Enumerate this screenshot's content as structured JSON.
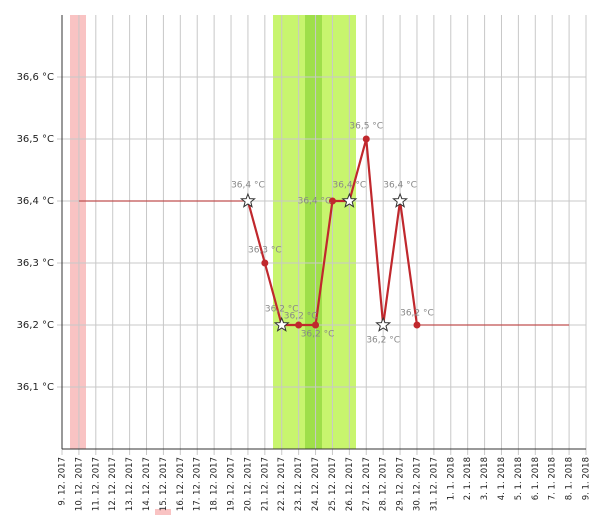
{
  "chart_data": {
    "type": "line",
    "categories": [
      "9. 12. 2017",
      "10. 12. 2017",
      "11. 12. 2017",
      "12. 12. 2017",
      "13. 12. 2017",
      "14. 12. 2017",
      "15. 12. 2017",
      "16. 12. 2017",
      "17. 12. 2017",
      "18. 12. 2017",
      "19. 12. 2017",
      "20. 12. 2017",
      "21. 12. 2017",
      "22. 12. 2017",
      "23. 12. 2017",
      "24. 12. 2017",
      "25. 12. 2017",
      "26. 12. 2017",
      "27. 12. 2017",
      "28. 12. 2017",
      "29. 12. 2017",
      "30. 12. 2017",
      "31. 12. 2017",
      "1. 1. 2018",
      "2. 1. 2018",
      "3. 1. 2018",
      "4. 1. 2018",
      "5. 1. 2018",
      "6. 1. 2018",
      "7. 1. 2018",
      "8. 1. 2018",
      "9. 1. 2018"
    ],
    "series": [
      {
        "color": "#c0282d",
        "values": [
          null,
          null,
          null,
          null,
          null,
          null,
          null,
          null,
          null,
          null,
          null,
          36.4,
          36.3,
          36.2,
          36.2,
          36.2,
          36.4,
          36.4,
          36.5,
          36.2,
          36.4,
          36.2,
          null,
          null,
          null,
          null,
          null,
          null,
          null,
          null,
          null,
          null
        ],
        "value_labels": [
          null,
          null,
          null,
          null,
          null,
          null,
          null,
          null,
          null,
          null,
          null,
          "36,4 °C",
          "36,3 °C",
          "36,2 °C",
          "36,2 °C",
          "36,2 °C",
          "36,4 °C",
          "36,4 °C",
          "36,5 °C",
          "36,2 °C",
          "36,4 °C",
          "36,2 °C",
          null,
          null,
          null,
          null,
          null,
          null,
          null,
          null,
          null,
          null
        ],
        "markers": [
          null,
          null,
          null,
          null,
          null,
          null,
          null,
          null,
          null,
          null,
          null,
          "star",
          "dot",
          "star",
          "dot",
          "dot",
          "dot",
          "star",
          "dot",
          "star",
          "star",
          "dot",
          null,
          null,
          null,
          null,
          null,
          null,
          null,
          null,
          null,
          null
        ]
      },
      {
        "color": "#c05050",
        "values": [
          null,
          36.4,
          36.4,
          36.4,
          36.4,
          36.4,
          36.4,
          36.4,
          36.4,
          36.4,
          36.4,
          36.4,
          null,
          null,
          null,
          null,
          null,
          null,
          null,
          null,
          null,
          36.2,
          36.2,
          36.2,
          36.2,
          36.2,
          36.2,
          36.2,
          36.2,
          36.2,
          36.2,
          null
        ]
      }
    ],
    "ylim": [
      36.0,
      36.7
    ],
    "yticks": [
      {
        "value": 36.1,
        "label": "36,1 °C"
      },
      {
        "value": 36.2,
        "label": "36,2 °C"
      },
      {
        "value": 36.3,
        "label": "36,3 °C"
      },
      {
        "value": 36.4,
        "label": "36,4 °C"
      },
      {
        "value": 36.5,
        "label": "36,5 °C"
      },
      {
        "value": 36.6,
        "label": "36,6 °C"
      }
    ],
    "grid": true
  }
}
